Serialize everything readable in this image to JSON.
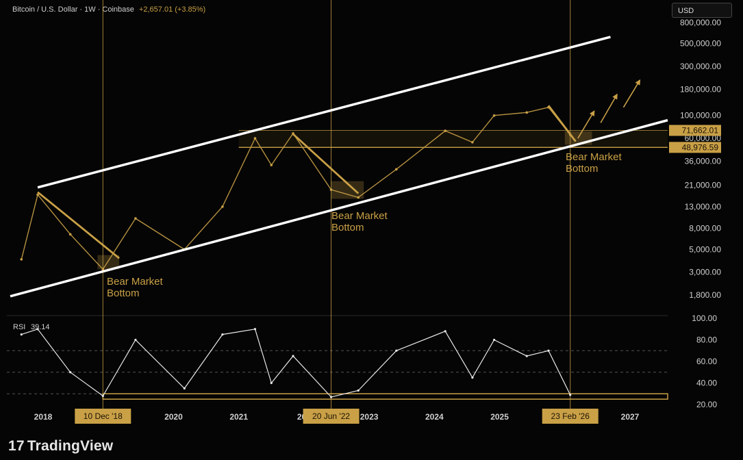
{
  "header": {
    "title": "Bitcoin / U.S. Dollar · 1W · Coinbase",
    "change": "+2,657.01 (+3.85%)"
  },
  "currency_button": {
    "label": "USD"
  },
  "footer": {
    "logo_text": "TradingView"
  },
  "colors": {
    "gold": "#c9a046",
    "background": "#050505",
    "channel": "#ffffff",
    "text": "#cfcfcf"
  },
  "chart_data": [
    {
      "type": "line",
      "panel": "price",
      "scale": "log",
      "x_ticks": [
        "2018",
        "2020",
        "2021",
        "202",
        "2023",
        "2024",
        "2025",
        "2027"
      ],
      "y_ticks": [
        "800,000.00",
        "500,000.00",
        "300,000.00",
        "180,000.00",
        "100,000.00",
        "60,000.00",
        "36,000.00",
        "21,000.00",
        "13,000.00",
        "8,000.00",
        "5,000.00",
        "3,000.00",
        "1,800.00"
      ],
      "price_labels": [
        "71,662.01",
        "48,976.59"
      ],
      "series": [
        {
          "x": [
            "2017-09",
            "2017-12",
            "2018-06",
            "2018-12",
            "2019-06",
            "2020-03",
            "2020-10",
            "2021-04",
            "2021-07",
            "2021-11",
            "2022-06",
            "2022-11",
            "2023-06",
            "2024-03",
            "2024-08",
            "2024-12",
            "2025-06",
            "2025-10",
            "2026-02"
          ],
          "values": [
            4000,
            17000,
            7000,
            3200,
            10000,
            5000,
            13000,
            60000,
            33000,
            67000,
            19000,
            16000,
            30000,
            71000,
            55000,
            100000,
            107000,
            120000,
            65000
          ]
        }
      ],
      "annotations": [
        "Bear Market Bottom",
        "Bear Market Bottom",
        "Bear Market Bottom"
      ]
    },
    {
      "type": "line",
      "panel": "rsi",
      "label": "RSI",
      "value_label": "39.14",
      "y_ticks": [
        "100.00",
        "80.00",
        "60.00",
        "40.00",
        "20.00"
      ],
      "ylim": [
        20,
        100
      ],
      "series": [
        {
          "x": [
            "2017-09",
            "2017-12",
            "2018-06",
            "2018-12",
            "2019-06",
            "2020-03",
            "2020-10",
            "2021-04",
            "2021-07",
            "2021-11",
            "2022-06",
            "2022-11",
            "2023-06",
            "2024-03",
            "2024-08",
            "2024-12",
            "2025-06",
            "2025-10",
            "2026-02"
          ],
          "values": [
            85,
            90,
            50,
            28,
            80,
            35,
            85,
            90,
            40,
            65,
            27,
            33,
            70,
            88,
            45,
            80,
            65,
            70,
            29
          ]
        }
      ],
      "date_markers": [
        "10 Dec '18",
        "20 Jun '22",
        "23 Feb '26"
      ]
    }
  ]
}
